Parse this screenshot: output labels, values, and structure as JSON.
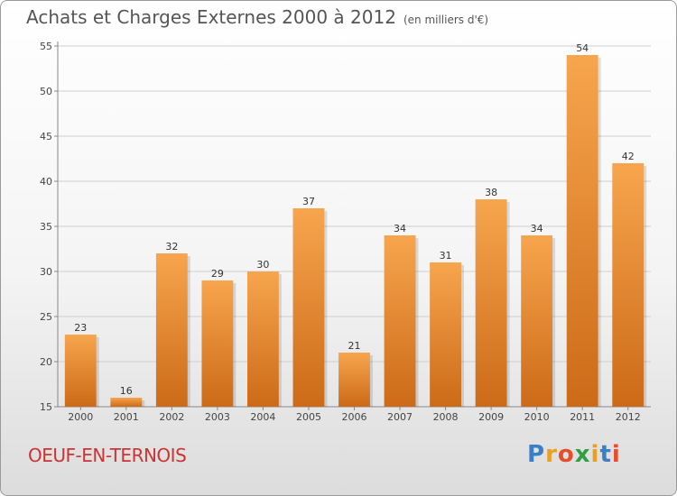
{
  "header": {
    "title": "Achats et Charges Externes 2000 à 2012",
    "unit": "(en milliers d'€)"
  },
  "footer": {
    "place": "OEUF-EN-TERNOIS",
    "logo_letters": [
      "P",
      "r",
      "o",
      "x",
      "i",
      "t",
      "i"
    ],
    "logo_colors": [
      "#3b7fc4",
      "#e8a020",
      "#e84c2b",
      "#2f9e44",
      "#e8a020",
      "#3b7fc4",
      "#e84c2b"
    ]
  },
  "colors": {
    "bar_light": "#f7a54e",
    "bar_dark": "#cc6a18",
    "grid": "#cfcfcf",
    "axis": "#888888"
  },
  "chart_data": {
    "type": "bar",
    "title": "Achats et Charges Externes 2000 à 2012",
    "subtitle": "(en milliers d'€)",
    "categories": [
      "2000",
      "2001",
      "2002",
      "2003",
      "2004",
      "2005",
      "2006",
      "2007",
      "2008",
      "2009",
      "2010",
      "2011",
      "2012"
    ],
    "values": [
      23,
      16,
      32,
      29,
      30,
      37,
      21,
      34,
      31,
      38,
      34,
      54,
      42
    ],
    "ylim": [
      15,
      55
    ],
    "yticks": [
      15,
      20,
      25,
      30,
      35,
      40,
      45,
      50,
      55
    ],
    "grid": true,
    "xlabel": "",
    "ylabel": ""
  }
}
